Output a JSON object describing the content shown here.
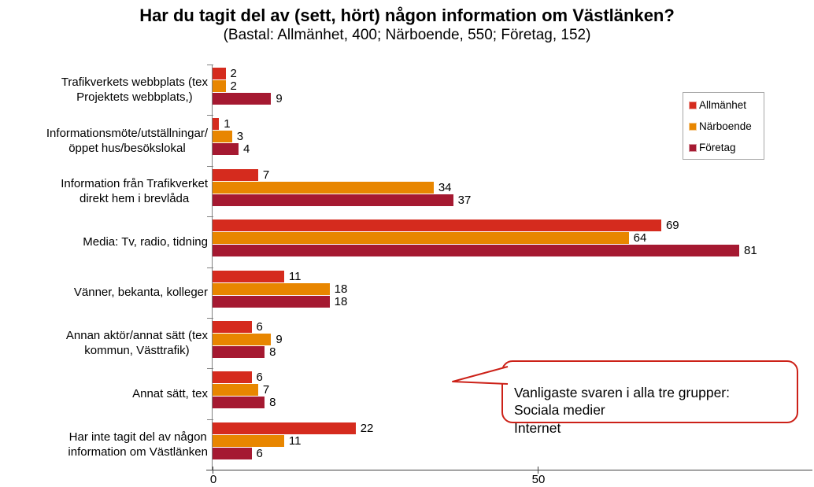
{
  "title": "Har du tagit del av (sett, hört) någon information om Västlänken?",
  "subtitle": "(Bastal: Allmänhet, 400; Närboende, 550; Företag, 152)",
  "callout": {
    "text": "Vanligaste svaren i alla tre grupper:\nSociala medier\nInternet",
    "border_color": "#cc2118"
  },
  "colors": {
    "axis_line": "#808080",
    "x_axis_line": "#404040",
    "legend_border": "#a6a6a6"
  },
  "chart_data": {
    "type": "bar",
    "orientation": "horizontal",
    "title": "Har du tagit del av (sett, hört) någon information om Västlänken?",
    "subtitle": "(Bastal: Allmänhet, 400; Närboende, 550; Företag, 152)",
    "categories": [
      "Trafikverkets webbplats (tex\nProjektets webbplats,)",
      "Informationsmöte/utställningar/\nöppet hus/besökslokal",
      "Information från Trafikverket\ndirekt hem i brevlåda",
      "Media: Tv, radio, tidning",
      "Vänner, bekanta, kolleger",
      "Annan aktör/annat sätt (tex\nkommun, Västtrafik)",
      "Annat sätt, tex",
      "Har inte tagit del av någon\ninformation om Västlänken"
    ],
    "series": [
      {
        "name": "Allmänhet",
        "color": "#d52b1e",
        "values": [
          2,
          1,
          7,
          69,
          11,
          6,
          6,
          22
        ]
      },
      {
        "name": "Närboende",
        "color": "#e88600",
        "values": [
          2,
          3,
          34,
          64,
          18,
          9,
          7,
          11
        ]
      },
      {
        "name": "Företag",
        "color": "#a51931",
        "values": [
          9,
          4,
          37,
          81,
          18,
          8,
          8,
          6
        ]
      }
    ],
    "xlim": [
      0,
      90
    ],
    "x_ticks": [
      0,
      50
    ],
    "grid": false,
    "legend_position": "right",
    "data_labels": true
  }
}
